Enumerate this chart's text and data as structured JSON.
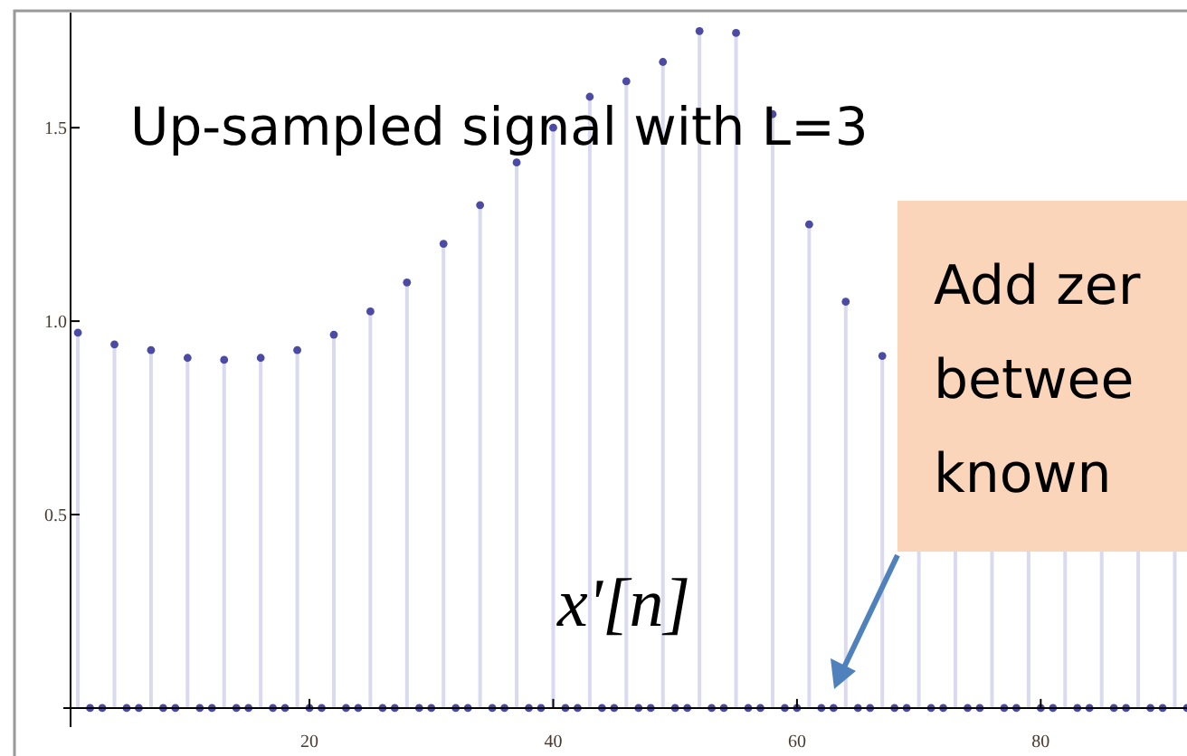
{
  "chart_data": {
    "type": "lollipop",
    "title": "Up-sampled signal with L=3",
    "x": [
      1,
      2,
      3,
      4,
      5,
      6,
      7,
      8,
      9,
      10,
      11,
      12,
      13,
      14,
      15,
      16,
      17,
      18,
      19,
      20,
      21,
      22,
      23,
      24,
      25,
      26,
      27,
      28,
      29,
      30,
      31,
      32,
      33,
      34,
      35,
      36,
      37,
      38,
      39,
      40,
      41,
      42,
      43,
      44,
      45,
      46,
      47,
      48,
      49,
      50,
      51,
      52,
      53,
      54,
      55,
      56,
      57,
      58,
      59,
      60,
      61,
      62,
      63,
      64,
      65,
      66,
      67,
      68,
      69,
      70,
      71,
      72,
      73,
      74,
      75,
      76,
      77,
      78,
      79,
      80,
      81,
      82,
      83,
      84,
      85,
      86,
      87,
      88,
      89,
      90,
      91,
      92
    ],
    "values": [
      0.97,
      0,
      0,
      0.94,
      0,
      0,
      0.925,
      0,
      0,
      0.905,
      0,
      0,
      0.9,
      0,
      0,
      0.905,
      0,
      0,
      0.925,
      0,
      0,
      0.965,
      0,
      0,
      1.025,
      0,
      0,
      1.1,
      0,
      0,
      1.2,
      0,
      0,
      1.3,
      0,
      0,
      1.41,
      0,
      0,
      1.5,
      0,
      0,
      1.58,
      0,
      0,
      1.62,
      0,
      0,
      1.67,
      0,
      0,
      1.75,
      0,
      0,
      1.745,
      0,
      0,
      1.535,
      0,
      0,
      1.25,
      0,
      0,
      1.05,
      0,
      0,
      0.91,
      0,
      0,
      null,
      0,
      0,
      null,
      0,
      0,
      null,
      0,
      0,
      null,
      0,
      0,
      null,
      0,
      0,
      null,
      0,
      0,
      null,
      0,
      0,
      null,
      0
    ],
    "color": "#4b4ba6",
    "marker": "circle",
    "xlim": [
      0.4,
      92
    ],
    "ylim": [
      -0.04,
      1.76
    ],
    "xticks": [
      20,
      40,
      60,
      80
    ],
    "yticks": [
      {
        "value": 0.5,
        "label": "0.5"
      },
      {
        "value": 1,
        "label": "1.0"
      },
      {
        "value": 1.5,
        "label": "1.5"
      }
    ],
    "annotations": [
      "x'[n]",
      "Add zer\nbetwee\nknown"
    ]
  }
}
